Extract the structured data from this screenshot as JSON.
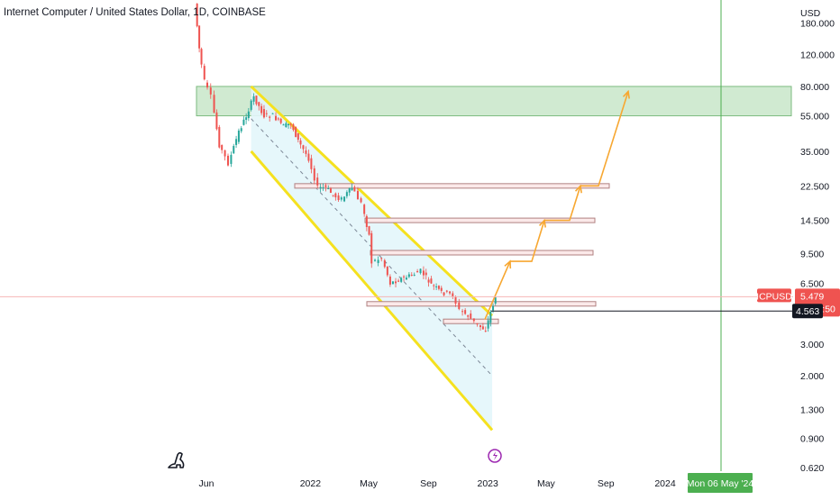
{
  "header": {
    "title": "Internet Computer / United States Dollar, 1D, COINBASE"
  },
  "price_axis": {
    "currency": "USD",
    "ticks": [
      "180.000",
      "120.000",
      "80.000",
      "55.000",
      "35.000",
      "22.500",
      "14.500",
      "9.500",
      "6.500",
      "4.563",
      "3.000",
      "2.000",
      "1.300",
      "0.900",
      "0.620"
    ]
  },
  "time_axis": {
    "ticks": [
      "Jun",
      "2022",
      "May",
      "Sep",
      "2023",
      "May",
      "Sep",
      "2024"
    ],
    "crosshair_label": "Mon 06 May '24"
  },
  "symbol_tag": {
    "symbol": "ICPUSD",
    "price": "5.479",
    "countdown": "09:07:50",
    "level_label": "4.563"
  },
  "colors": {
    "up": "#26a69a",
    "down": "#ef5350",
    "channel_line": "#f5e11f",
    "channel_fill": "#e3f6fb",
    "target_zone": "#c8e6c9",
    "projection_arrow": "#f7a731",
    "crosshair": "#4caf50",
    "price_tag": "#ef5350"
  },
  "chart_data": {
    "type": "line",
    "scale": "log",
    "title": "Internet Computer / United States Dollar, 1D, COINBASE",
    "xlabel": "",
    "ylabel": "USD",
    "ylim": [
      0.62,
      230
    ],
    "x_ticks": [
      "Jun",
      "2022",
      "May",
      "Sep",
      "2023",
      "May",
      "Sep",
      "2024"
    ],
    "series": [
      {
        "name": "ICPUSD",
        "x": [
          "2021-05-11",
          "2021-05-20",
          "2021-06-01",
          "2021-06-15",
          "2021-07-01",
          "2021-07-20",
          "2021-08-10",
          "2021-08-25",
          "2021-09-10",
          "2021-10-01",
          "2021-10-20",
          "2021-11-10",
          "2021-11-25",
          "2021-12-10",
          "2022-01-01",
          "2022-01-20",
          "2022-02-05",
          "2022-02-20",
          "2022-03-10",
          "2022-03-31",
          "2022-04-20",
          "2022-05-05",
          "2022-05-12",
          "2022-06-01",
          "2022-06-18",
          "2022-07-05",
          "2022-08-01",
          "2022-08-20",
          "2022-09-10",
          "2022-10-01",
          "2022-10-25",
          "2022-11-08",
          "2022-11-25",
          "2022-12-15",
          "2022-12-31",
          "2023-01-10",
          "2023-01-20"
        ],
        "y": [
          230,
          130,
          85,
          70,
          38,
          30,
          45,
          55,
          70,
          55,
          55,
          48,
          50,
          40,
          32,
          22,
          22,
          20,
          19,
          22,
          18,
          12,
          8.5,
          9,
          6.5,
          6.8,
          7.2,
          7.6,
          6.4,
          5.8,
          5.6,
          4.6,
          4.3,
          3.8,
          3.6,
          4.5,
          5.48
        ]
      }
    ],
    "channel": {
      "upper": {
        "from": {
          "x": "2021-09-01",
          "y": 80
        },
        "to": {
          "x": "2023-01-10",
          "y": 4.3
        }
      },
      "lower": {
        "from": {
          "x": "2021-09-01",
          "y": 35
        },
        "to": {
          "x": "2023-01-10",
          "y": 1.0
        }
      },
      "mid": {
        "from": {
          "x": "2021-09-01",
          "y": 53
        },
        "to": {
          "x": "2023-01-10",
          "y": 2.0
        }
      }
    },
    "horizontal_levels": [
      4.0,
      5.0,
      9.6,
      14.5,
      22.5
    ],
    "target_zone": [
      55,
      80
    ],
    "projection_path_y": [
      4.1,
      8.6,
      8.6,
      14.5,
      14.5,
      22.5,
      22.5,
      75
    ],
    "last_price": 5.479,
    "marked_level": 4.563,
    "grid": false,
    "legend": "none"
  }
}
